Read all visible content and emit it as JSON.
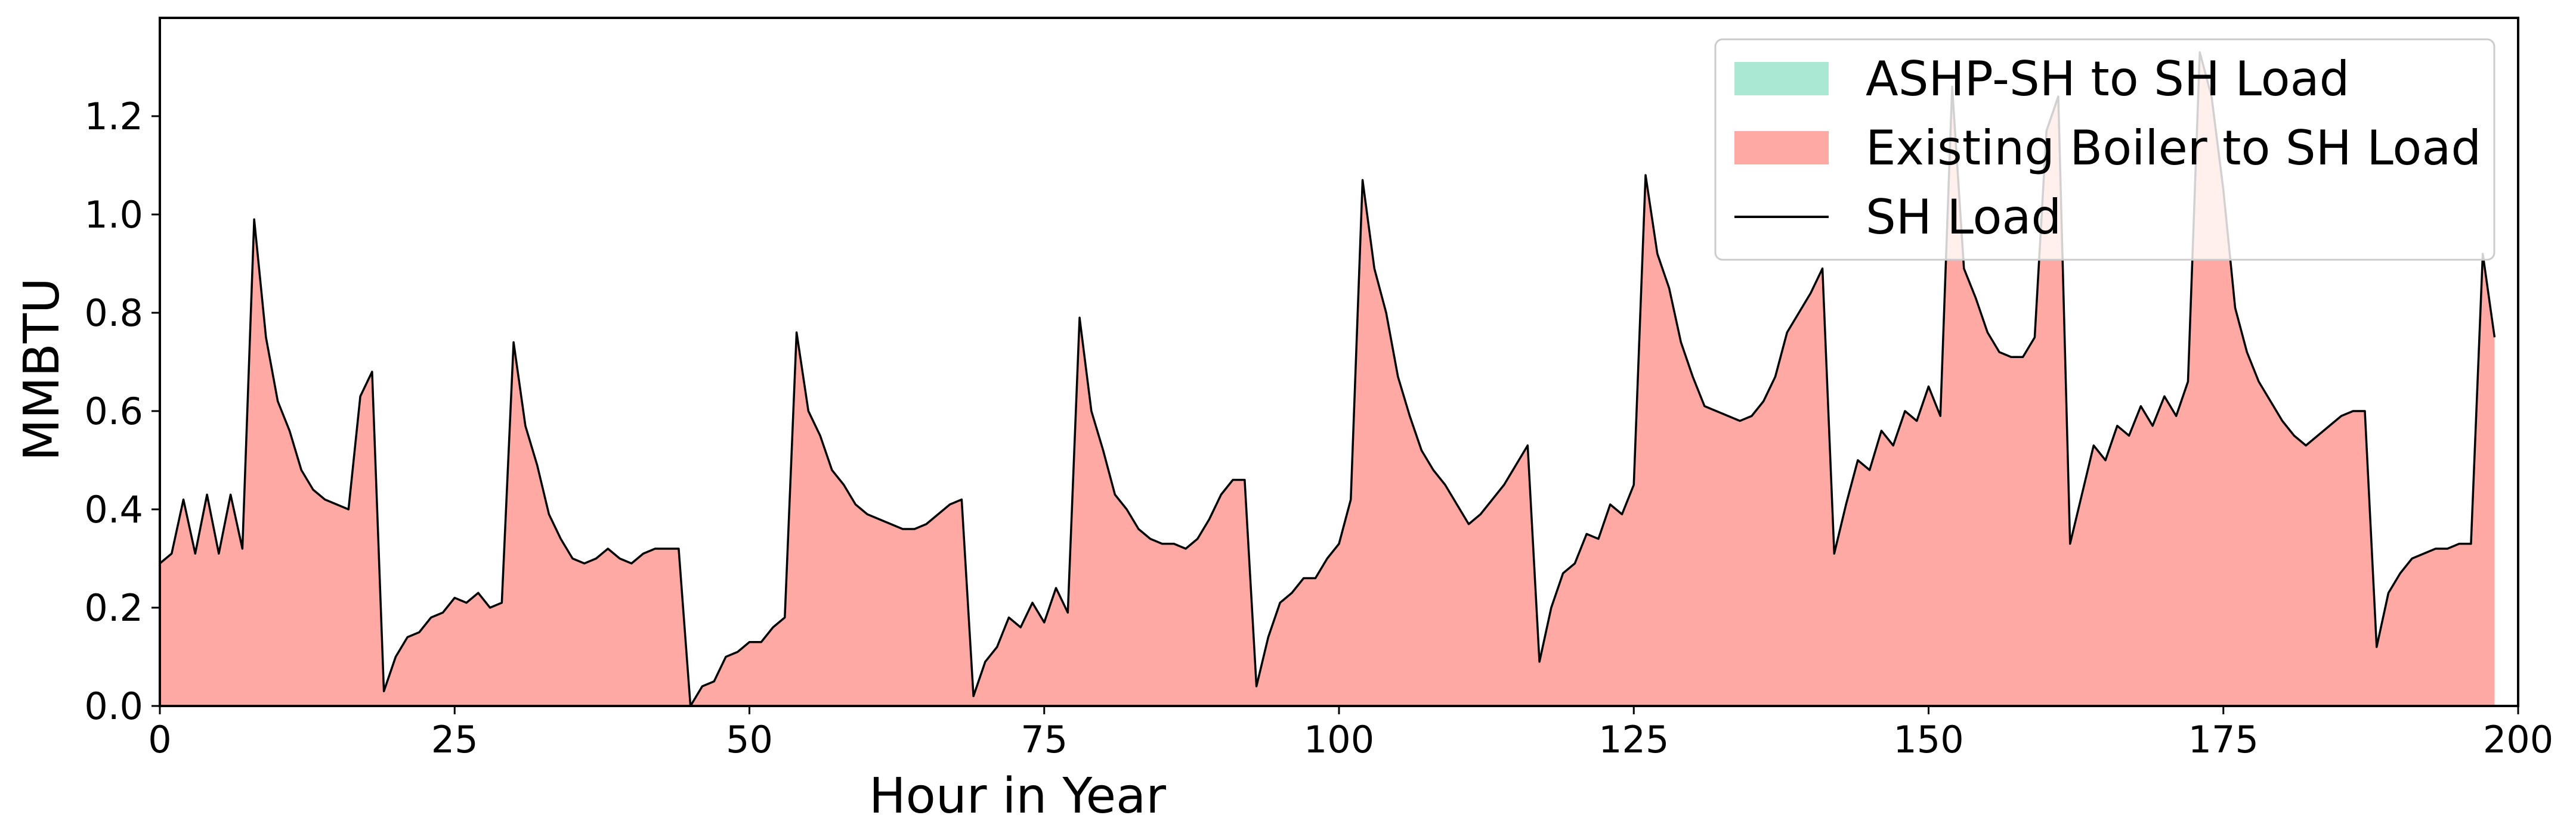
{
  "chart_data": {
    "type": "area",
    "title": "",
    "xlabel": "Hour in Year",
    "ylabel": "MMBTU",
    "xlim": [
      0,
      200
    ],
    "ylim": [
      0,
      1.4
    ],
    "xticks": [
      0,
      25,
      50,
      75,
      100,
      125,
      150,
      175,
      200
    ],
    "yticks": [
      0.0,
      0.2,
      0.4,
      0.6,
      0.8,
      1.0,
      1.2
    ],
    "xtick_labels": [
      "0",
      "25",
      "50",
      "75",
      "100",
      "125",
      "150",
      "175",
      "200"
    ],
    "ytick_labels": [
      "0.0",
      "0.2",
      "0.4",
      "0.6",
      "0.8",
      "1.0",
      "1.2"
    ],
    "grid": false,
    "legend_position": "top-right",
    "x_start": 0,
    "series": [
      {
        "name": "ASHP-SH to SH Load",
        "kind": "stacked-area",
        "color": "#abe8d4",
        "values": []
      },
      {
        "name": "Existing Boiler to SH Load",
        "kind": "stacked-area",
        "color": "#fea9a3",
        "values": [
          0.29,
          0.31,
          0.42,
          0.31,
          0.43,
          0.31,
          0.43,
          0.32,
          0.99,
          0.75,
          0.62,
          0.56,
          0.48,
          0.44,
          0.42,
          0.41,
          0.4,
          0.63,
          0.68,
          0.03,
          0.1,
          0.14,
          0.15,
          0.18,
          0.19,
          0.22,
          0.21,
          0.23,
          0.2,
          0.21,
          0.74,
          0.57,
          0.49,
          0.39,
          0.34,
          0.3,
          0.29,
          0.3,
          0.32,
          0.3,
          0.29,
          0.31,
          0.32,
          0.32,
          0.32,
          0.0,
          0.04,
          0.05,
          0.1,
          0.11,
          0.13,
          0.13,
          0.16,
          0.18,
          0.76,
          0.6,
          0.55,
          0.48,
          0.45,
          0.41,
          0.39,
          0.38,
          0.37,
          0.36,
          0.36,
          0.37,
          0.39,
          0.41,
          0.42,
          0.02,
          0.09,
          0.12,
          0.18,
          0.16,
          0.21,
          0.17,
          0.24,
          0.19,
          0.79,
          0.6,
          0.52,
          0.43,
          0.4,
          0.36,
          0.34,
          0.33,
          0.33,
          0.32,
          0.34,
          0.38,
          0.43,
          0.46,
          0.46,
          0.04,
          0.14,
          0.21,
          0.23,
          0.26,
          0.26,
          0.3,
          0.33,
          0.42,
          1.07,
          0.89,
          0.8,
          0.67,
          0.59,
          0.52,
          0.48,
          0.45,
          0.41,
          0.37,
          0.39,
          0.42,
          0.45,
          0.49,
          0.53,
          0.09,
          0.2,
          0.27,
          0.29,
          0.35,
          0.34,
          0.41,
          0.39,
          0.45,
          1.08,
          0.92,
          0.85,
          0.74,
          0.67,
          0.61,
          0.6,
          0.59,
          0.58,
          0.59,
          0.62,
          0.67,
          0.76,
          0.8,
          0.84,
          0.89,
          0.31,
          0.41,
          0.5,
          0.48,
          0.56,
          0.53,
          0.6,
          0.58,
          0.65,
          0.59,
          1.26,
          0.89,
          0.83,
          0.76,
          0.72,
          0.71,
          0.71,
          0.75,
          1.17,
          1.24,
          0.33,
          0.43,
          0.53,
          0.5,
          0.57,
          0.55,
          0.61,
          0.57,
          0.63,
          0.59,
          0.66,
          1.33,
          1.24,
          1.05,
          0.81,
          0.72,
          0.66,
          0.62,
          0.58,
          0.55,
          0.53,
          0.55,
          0.57,
          0.59,
          0.6,
          0.6,
          0.12,
          0.23,
          0.27,
          0.3,
          0.31,
          0.32,
          0.32,
          0.33,
          0.33,
          0.92,
          0.75
        ]
      },
      {
        "name": "SH Load",
        "kind": "line",
        "color": "#000000",
        "values": [
          0.29,
          0.31,
          0.42,
          0.31,
          0.43,
          0.31,
          0.43,
          0.32,
          0.99,
          0.75,
          0.62,
          0.56,
          0.48,
          0.44,
          0.42,
          0.41,
          0.4,
          0.63,
          0.68,
          0.03,
          0.1,
          0.14,
          0.15,
          0.18,
          0.19,
          0.22,
          0.21,
          0.23,
          0.2,
          0.21,
          0.74,
          0.57,
          0.49,
          0.39,
          0.34,
          0.3,
          0.29,
          0.3,
          0.32,
          0.3,
          0.29,
          0.31,
          0.32,
          0.32,
          0.32,
          0.0,
          0.04,
          0.05,
          0.1,
          0.11,
          0.13,
          0.13,
          0.16,
          0.18,
          0.76,
          0.6,
          0.55,
          0.48,
          0.45,
          0.41,
          0.39,
          0.38,
          0.37,
          0.36,
          0.36,
          0.37,
          0.39,
          0.41,
          0.42,
          0.02,
          0.09,
          0.12,
          0.18,
          0.16,
          0.21,
          0.17,
          0.24,
          0.19,
          0.79,
          0.6,
          0.52,
          0.43,
          0.4,
          0.36,
          0.34,
          0.33,
          0.33,
          0.32,
          0.34,
          0.38,
          0.43,
          0.46,
          0.46,
          0.04,
          0.14,
          0.21,
          0.23,
          0.26,
          0.26,
          0.3,
          0.33,
          0.42,
          1.07,
          0.89,
          0.8,
          0.67,
          0.59,
          0.52,
          0.48,
          0.45,
          0.41,
          0.37,
          0.39,
          0.42,
          0.45,
          0.49,
          0.53,
          0.09,
          0.2,
          0.27,
          0.29,
          0.35,
          0.34,
          0.41,
          0.39,
          0.45,
          1.08,
          0.92,
          0.85,
          0.74,
          0.67,
          0.61,
          0.6,
          0.59,
          0.58,
          0.59,
          0.62,
          0.67,
          0.76,
          0.8,
          0.84,
          0.89,
          0.31,
          0.41,
          0.5,
          0.48,
          0.56,
          0.53,
          0.6,
          0.58,
          0.65,
          0.59,
          1.26,
          0.89,
          0.83,
          0.76,
          0.72,
          0.71,
          0.71,
          0.75,
          1.17,
          1.24,
          0.33,
          0.43,
          0.53,
          0.5,
          0.57,
          0.55,
          0.61,
          0.57,
          0.63,
          0.59,
          0.66,
          1.33,
          1.24,
          1.05,
          0.81,
          0.72,
          0.66,
          0.62,
          0.58,
          0.55,
          0.53,
          0.55,
          0.57,
          0.59,
          0.6,
          0.6,
          0.12,
          0.23,
          0.27,
          0.3,
          0.31,
          0.32,
          0.32,
          0.33,
          0.33,
          0.92,
          0.75
        ]
      }
    ]
  }
}
